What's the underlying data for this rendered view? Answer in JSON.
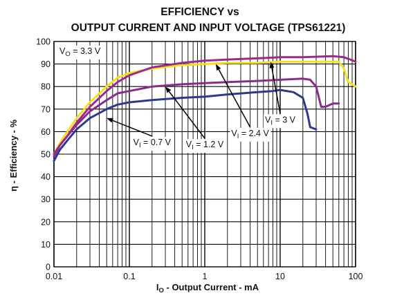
{
  "chart_data": {
    "type": "line",
    "title": "EFFICIENCY vs",
    "subtitle": "OUTPUT CURRENT AND INPUT VOLTAGE (TPS61221)",
    "xlabel_main": "I",
    "xlabel_sub": "O",
    "xlabel_rest": " - Output Current - mA",
    "ylabel": "η - Efficiency - %",
    "x_scale": "log",
    "xlim": [
      0.01,
      100
    ],
    "ylim": [
      0,
      100
    ],
    "x_ticks": [
      {
        "value": 0.01,
        "label": "0.01"
      },
      {
        "value": 0.1,
        "label": "0.1"
      },
      {
        "value": 1,
        "label": "1"
      },
      {
        "value": 10,
        "label": "10"
      },
      {
        "value": 100,
        "label": "100"
      }
    ],
    "y_ticks": [
      {
        "value": 0,
        "label": "0"
      },
      {
        "value": 10,
        "label": "10"
      },
      {
        "value": 20,
        "label": "20"
      },
      {
        "value": 30,
        "label": "30"
      },
      {
        "value": 40,
        "label": "40"
      },
      {
        "value": 50,
        "label": "50"
      },
      {
        "value": 60,
        "label": "60"
      },
      {
        "value": 70,
        "label": "70"
      },
      {
        "value": 80,
        "label": "80"
      },
      {
        "value": 90,
        "label": "90"
      },
      {
        "value": 100,
        "label": "100"
      }
    ],
    "grid": true,
    "condition": {
      "main": "V",
      "sub": "O",
      "rest": " = 3.3 V"
    },
    "series": [
      {
        "name": "VI = 0.7 V",
        "color": "#2b3a8f",
        "points": [
          [
            0.01,
            47
          ],
          [
            0.012,
            52
          ],
          [
            0.015,
            56
          ],
          [
            0.02,
            61
          ],
          [
            0.03,
            66
          ],
          [
            0.05,
            70
          ],
          [
            0.07,
            72
          ],
          [
            0.1,
            73
          ],
          [
            0.2,
            74
          ],
          [
            0.5,
            75
          ],
          [
            1,
            75.5
          ],
          [
            2,
            76.5
          ],
          [
            5,
            77.5
          ],
          [
            8,
            78
          ],
          [
            10,
            78.5
          ],
          [
            15,
            77.5
          ],
          [
            20,
            75
          ],
          [
            23,
            68
          ],
          [
            25,
            62
          ],
          [
            30,
            61
          ]
        ]
      },
      {
        "name": "VI = 1.2 V",
        "color": "#8c2a8c",
        "points": [
          [
            0.01,
            49
          ],
          [
            0.012,
            54
          ],
          [
            0.015,
            58
          ],
          [
            0.02,
            63
          ],
          [
            0.03,
            69
          ],
          [
            0.05,
            74
          ],
          [
            0.07,
            77
          ],
          [
            0.1,
            78
          ],
          [
            0.2,
            80
          ],
          [
            0.5,
            81
          ],
          [
            1,
            81.5
          ],
          [
            2,
            82
          ],
          [
            5,
            82.5
          ],
          [
            10,
            83
          ],
          [
            20,
            83.5
          ],
          [
            25,
            83
          ],
          [
            30,
            80
          ],
          [
            35,
            71
          ],
          [
            40,
            71
          ],
          [
            50,
            72.5
          ],
          [
            60,
            72.5
          ]
        ]
      },
      {
        "name": "VI = 2.4 V",
        "color": "#f2e21e",
        "points": [
          [
            0.01,
            50
          ],
          [
            0.012,
            55
          ],
          [
            0.015,
            60
          ],
          [
            0.02,
            66
          ],
          [
            0.03,
            73
          ],
          [
            0.05,
            80
          ],
          [
            0.07,
            84
          ],
          [
            0.1,
            86
          ],
          [
            0.2,
            88
          ],
          [
            0.5,
            89.5
          ],
          [
            1,
            90
          ],
          [
            2,
            90.5
          ],
          [
            5,
            90.5
          ],
          [
            10,
            91
          ],
          [
            30,
            91
          ],
          [
            60,
            91
          ],
          [
            70,
            88
          ],
          [
            80,
            82
          ],
          [
            100,
            80
          ]
        ]
      },
      {
        "name": "VI = 3 V",
        "color": "#a0288c",
        "points": [
          [
            0.01,
            50
          ],
          [
            0.012,
            54
          ],
          [
            0.015,
            58
          ],
          [
            0.02,
            64
          ],
          [
            0.03,
            71
          ],
          [
            0.05,
            78
          ],
          [
            0.07,
            82
          ],
          [
            0.1,
            85
          ],
          [
            0.2,
            88.5
          ],
          [
            0.5,
            90.5
          ],
          [
            1,
            91.5
          ],
          [
            2,
            92
          ],
          [
            5,
            92.5
          ],
          [
            10,
            93
          ],
          [
            20,
            93
          ],
          [
            50,
            93.5
          ],
          [
            70,
            93
          ],
          [
            85,
            92
          ],
          [
            100,
            91
          ]
        ]
      }
    ],
    "annotations": [
      {
        "main": "V",
        "sub": "I",
        "rest": " = 0.7 V",
        "anchor": [
          0.2,
          58
        ],
        "target": [
          0.05,
          66
        ]
      },
      {
        "main": "V",
        "sub": "I",
        "rest": " = 1.2 V",
        "anchor": [
          1.0,
          57
        ],
        "target": [
          0.3,
          80
        ]
      },
      {
        "main": "V",
        "sub": "I",
        "rest": " = 2.4 V",
        "anchor": [
          4.0,
          62
        ],
        "target": [
          1.4,
          90
        ]
      },
      {
        "main": "V",
        "sub": "I",
        "rest": " = 3 V",
        "anchor": [
          10.0,
          68
        ],
        "target": [
          7.5,
          91
        ]
      }
    ]
  }
}
